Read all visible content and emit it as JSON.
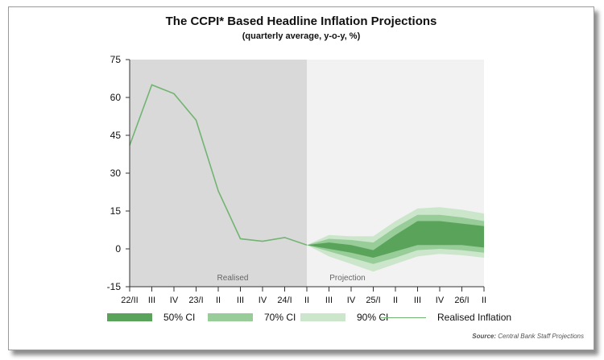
{
  "chart_data": {
    "type": "line",
    "title": "The CCPI* Based Headline Inflation Projections",
    "subtitle": "(quarterly average, y-o-y, %)",
    "xlabel": "",
    "ylabel": "",
    "ylim": [
      -15,
      75
    ],
    "yticks": [
      -15,
      0,
      15,
      30,
      45,
      60,
      75
    ],
    "categories": [
      "22/II",
      "III",
      "IV",
      "23/I",
      "II",
      "III",
      "IV",
      "24/I",
      "II",
      "III",
      "IV",
      "25/I",
      "II",
      "III",
      "IV",
      "26/I",
      "II"
    ],
    "series": [
      {
        "name": "Realised Inflation",
        "values": [
          41,
          65,
          61.5,
          51,
          23,
          4,
          3,
          4.5,
          1.5,
          null,
          null,
          null,
          null,
          null,
          null,
          null,
          null
        ]
      },
      {
        "name": "90% CI",
        "lower": [
          null,
          null,
          null,
          null,
          null,
          null,
          null,
          null,
          1.5,
          -3,
          -6,
          -9,
          -6,
          -3,
          -2,
          -2.5,
          -3.5
        ],
        "upper": [
          null,
          null,
          null,
          null,
          null,
          null,
          null,
          null,
          1.5,
          5.5,
          5,
          5,
          11,
          16,
          16.5,
          15.5,
          14
        ]
      },
      {
        "name": "70% CI",
        "lower": [
          null,
          null,
          null,
          null,
          null,
          null,
          null,
          null,
          1.5,
          -1,
          -3.5,
          -6,
          -3.5,
          -0.5,
          0,
          -0.5,
          -1.5
        ],
        "upper": [
          null,
          null,
          null,
          null,
          null,
          null,
          null,
          null,
          1.5,
          4,
          3.5,
          2.5,
          8.5,
          13.5,
          13.5,
          12.5,
          11
        ]
      },
      {
        "name": "50% CI",
        "lower": [
          null,
          null,
          null,
          null,
          null,
          null,
          null,
          null,
          1.5,
          0,
          -1.5,
          -3.5,
          -1,
          1.5,
          1.5,
          1.5,
          0.5
        ],
        "upper": [
          null,
          null,
          null,
          null,
          null,
          null,
          null,
          null,
          1.5,
          2.5,
          1.5,
          -0.5,
          5.5,
          11,
          11,
          10,
          9
        ]
      }
    ],
    "regions": [
      {
        "label": "Realised",
        "from": 0,
        "to": 8,
        "color": "#d9d9d9"
      },
      {
        "label": "Projection",
        "from": 8,
        "to": 16,
        "color": "#f2f2f2"
      }
    ],
    "legend": [
      "50% CI",
      "70% CI",
      "90% CI",
      "Realised Inflation"
    ],
    "legend_position": "bottom",
    "colors": {
      "ci50": "#5aa35a",
      "ci70": "#98cc98",
      "ci90": "#cce6cc",
      "line": "#72b472",
      "realised_bg": "#d9d9d9",
      "projection_bg": "#f2f2f2"
    },
    "grid": false
  },
  "source": {
    "prefix": "Source:",
    "text": "Central Bank Staff Projections"
  }
}
